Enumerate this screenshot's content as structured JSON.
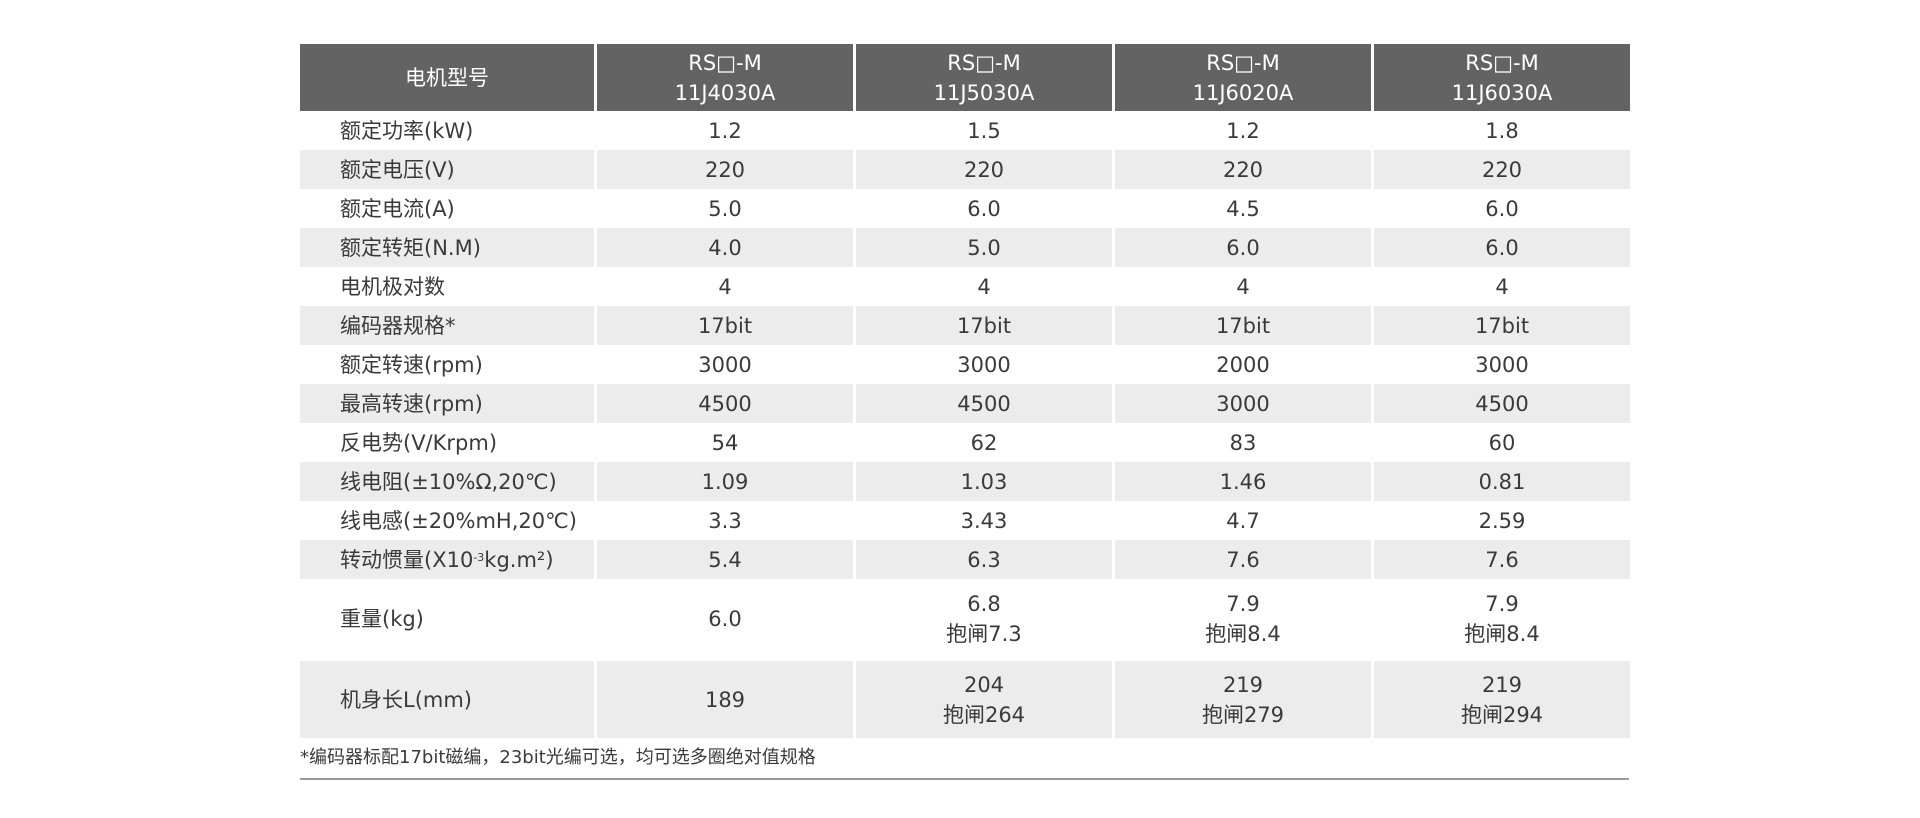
{
  "table": {
    "header": {
      "label": "电机型号",
      "models": [
        {
          "line1": "RS□-M",
          "line2": "11J4030A"
        },
        {
          "line1": "RS□-M",
          "line2": "11J5030A"
        },
        {
          "line1": "RS□-M",
          "line2": "11J6020A"
        },
        {
          "line1": "RS□-M",
          "line2": "11J6030A"
        }
      ]
    },
    "rows": [
      {
        "label": "额定功率(kW)",
        "values": [
          "1.2",
          "1.5",
          "1.2",
          "1.8"
        ]
      },
      {
        "label": "额定电压(V)",
        "values": [
          "220",
          "220",
          "220",
          "220"
        ]
      },
      {
        "label": "额定电流(A)",
        "values": [
          "5.0",
          "6.0",
          "4.5",
          "6.0"
        ]
      },
      {
        "label": "额定转矩(N.M)",
        "values": [
          "4.0",
          "5.0",
          "6.0",
          "6.0"
        ]
      },
      {
        "label": "电机极对数",
        "values": [
          "4",
          "4",
          "4",
          "4"
        ]
      },
      {
        "label": "编码器规格*",
        "values": [
          "17bit",
          "17bit",
          "17bit",
          "17bit"
        ]
      },
      {
        "label": "额定转速(rpm)",
        "values": [
          "3000",
          "3000",
          "2000",
          "3000"
        ]
      },
      {
        "label": "最高转速(rpm)",
        "values": [
          "4500",
          "4500",
          "3000",
          "4500"
        ]
      },
      {
        "label": "反电势(V/Krpm)",
        "values": [
          "54",
          "62",
          "83",
          "60"
        ]
      },
      {
        "label": "线电阻(±10%Ω,20℃)",
        "values": [
          "1.09",
          "1.03",
          "1.46",
          "0.81"
        ]
      },
      {
        "label": "线电感(±20%mH,20℃)",
        "values": [
          "3.3",
          "3.43",
          "4.7",
          "2.59"
        ]
      },
      {
        "label_pre": "转动惯量(X10",
        "label_sup": "-3",
        "label_post": "kg.m²)",
        "values": [
          "5.4",
          "6.3",
          "7.6",
          "7.6"
        ]
      },
      {
        "label": "重量(kg)",
        "values": [
          {
            "line1": "6.0",
            "line2": ""
          },
          {
            "line1": "6.8",
            "line2": "抱闸7.3"
          },
          {
            "line1": "7.9",
            "line2": "抱闸8.4"
          },
          {
            "line1": "7.9",
            "line2": "抱闸8.4"
          }
        ]
      },
      {
        "label": "机身长L(mm)",
        "values": [
          {
            "line1": "189",
            "line2": ""
          },
          {
            "line1": "204",
            "line2": "抱闸264"
          },
          {
            "line1": "219",
            "line2": "抱闸279"
          },
          {
            "line1": "219",
            "line2": "抱闸294"
          }
        ]
      }
    ]
  },
  "footnote": "*编码器标配17bit磁编，23bit光编可选，均可选多圈绝对值规格"
}
